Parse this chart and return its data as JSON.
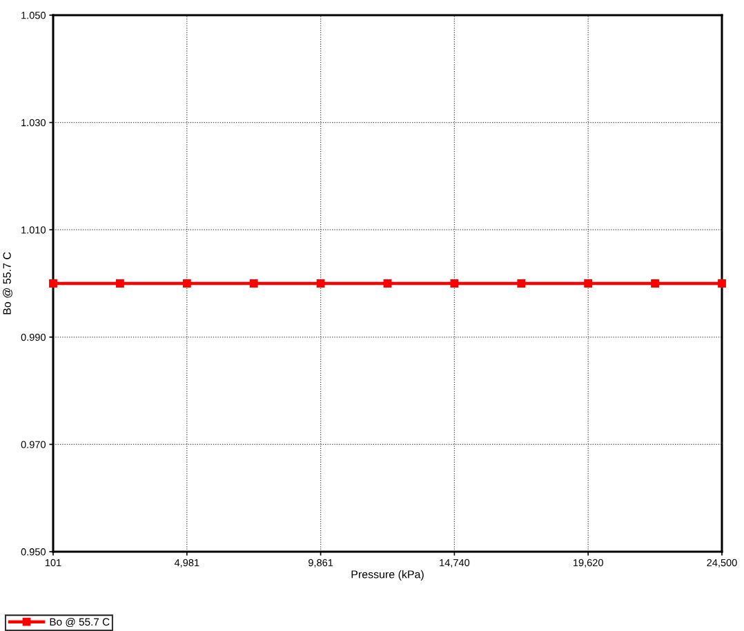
{
  "chart_data": {
    "type": "line",
    "xlabel": "Pressure (kPa)",
    "ylabel": "Bo @ 55.7 C",
    "x": [
      101,
      2541,
      4981,
      7421,
      9861,
      12300,
      14740,
      17180,
      19620,
      22060,
      24500
    ],
    "series": [
      {
        "name": "Bo @ 55.7 C",
        "color": "#ff0000",
        "values": [
          1.0,
          1.0,
          1.0,
          1.0,
          1.0,
          1.0,
          1.0,
          1.0,
          1.0,
          1.0,
          1.0
        ]
      }
    ],
    "xlim": [
      101,
      24500
    ],
    "xticks": [
      101,
      {
        "value": 4981,
        "label": "4,981"
      },
      {
        "value": 9861,
        "label": "9,861"
      },
      {
        "value": 14740,
        "label": "14,740"
      },
      {
        "value": 19620,
        "label": "19,620"
      },
      {
        "value": 24500,
        "label": "24,500"
      }
    ],
    "ylim": [
      0.95,
      1.05
    ],
    "yticks": [
      {
        "value": 0.95,
        "label": "0.950"
      },
      {
        "value": 0.97,
        "label": "0.970"
      },
      {
        "value": 0.99,
        "label": "0.990"
      },
      {
        "value": 1.01,
        "label": "1.010"
      },
      {
        "value": 1.03,
        "label": "1.030"
      },
      {
        "value": 1.05,
        "label": "1.050"
      }
    ],
    "grid": true,
    "legend": "bottom left",
    "marker": "square",
    "line_style": "solid"
  }
}
